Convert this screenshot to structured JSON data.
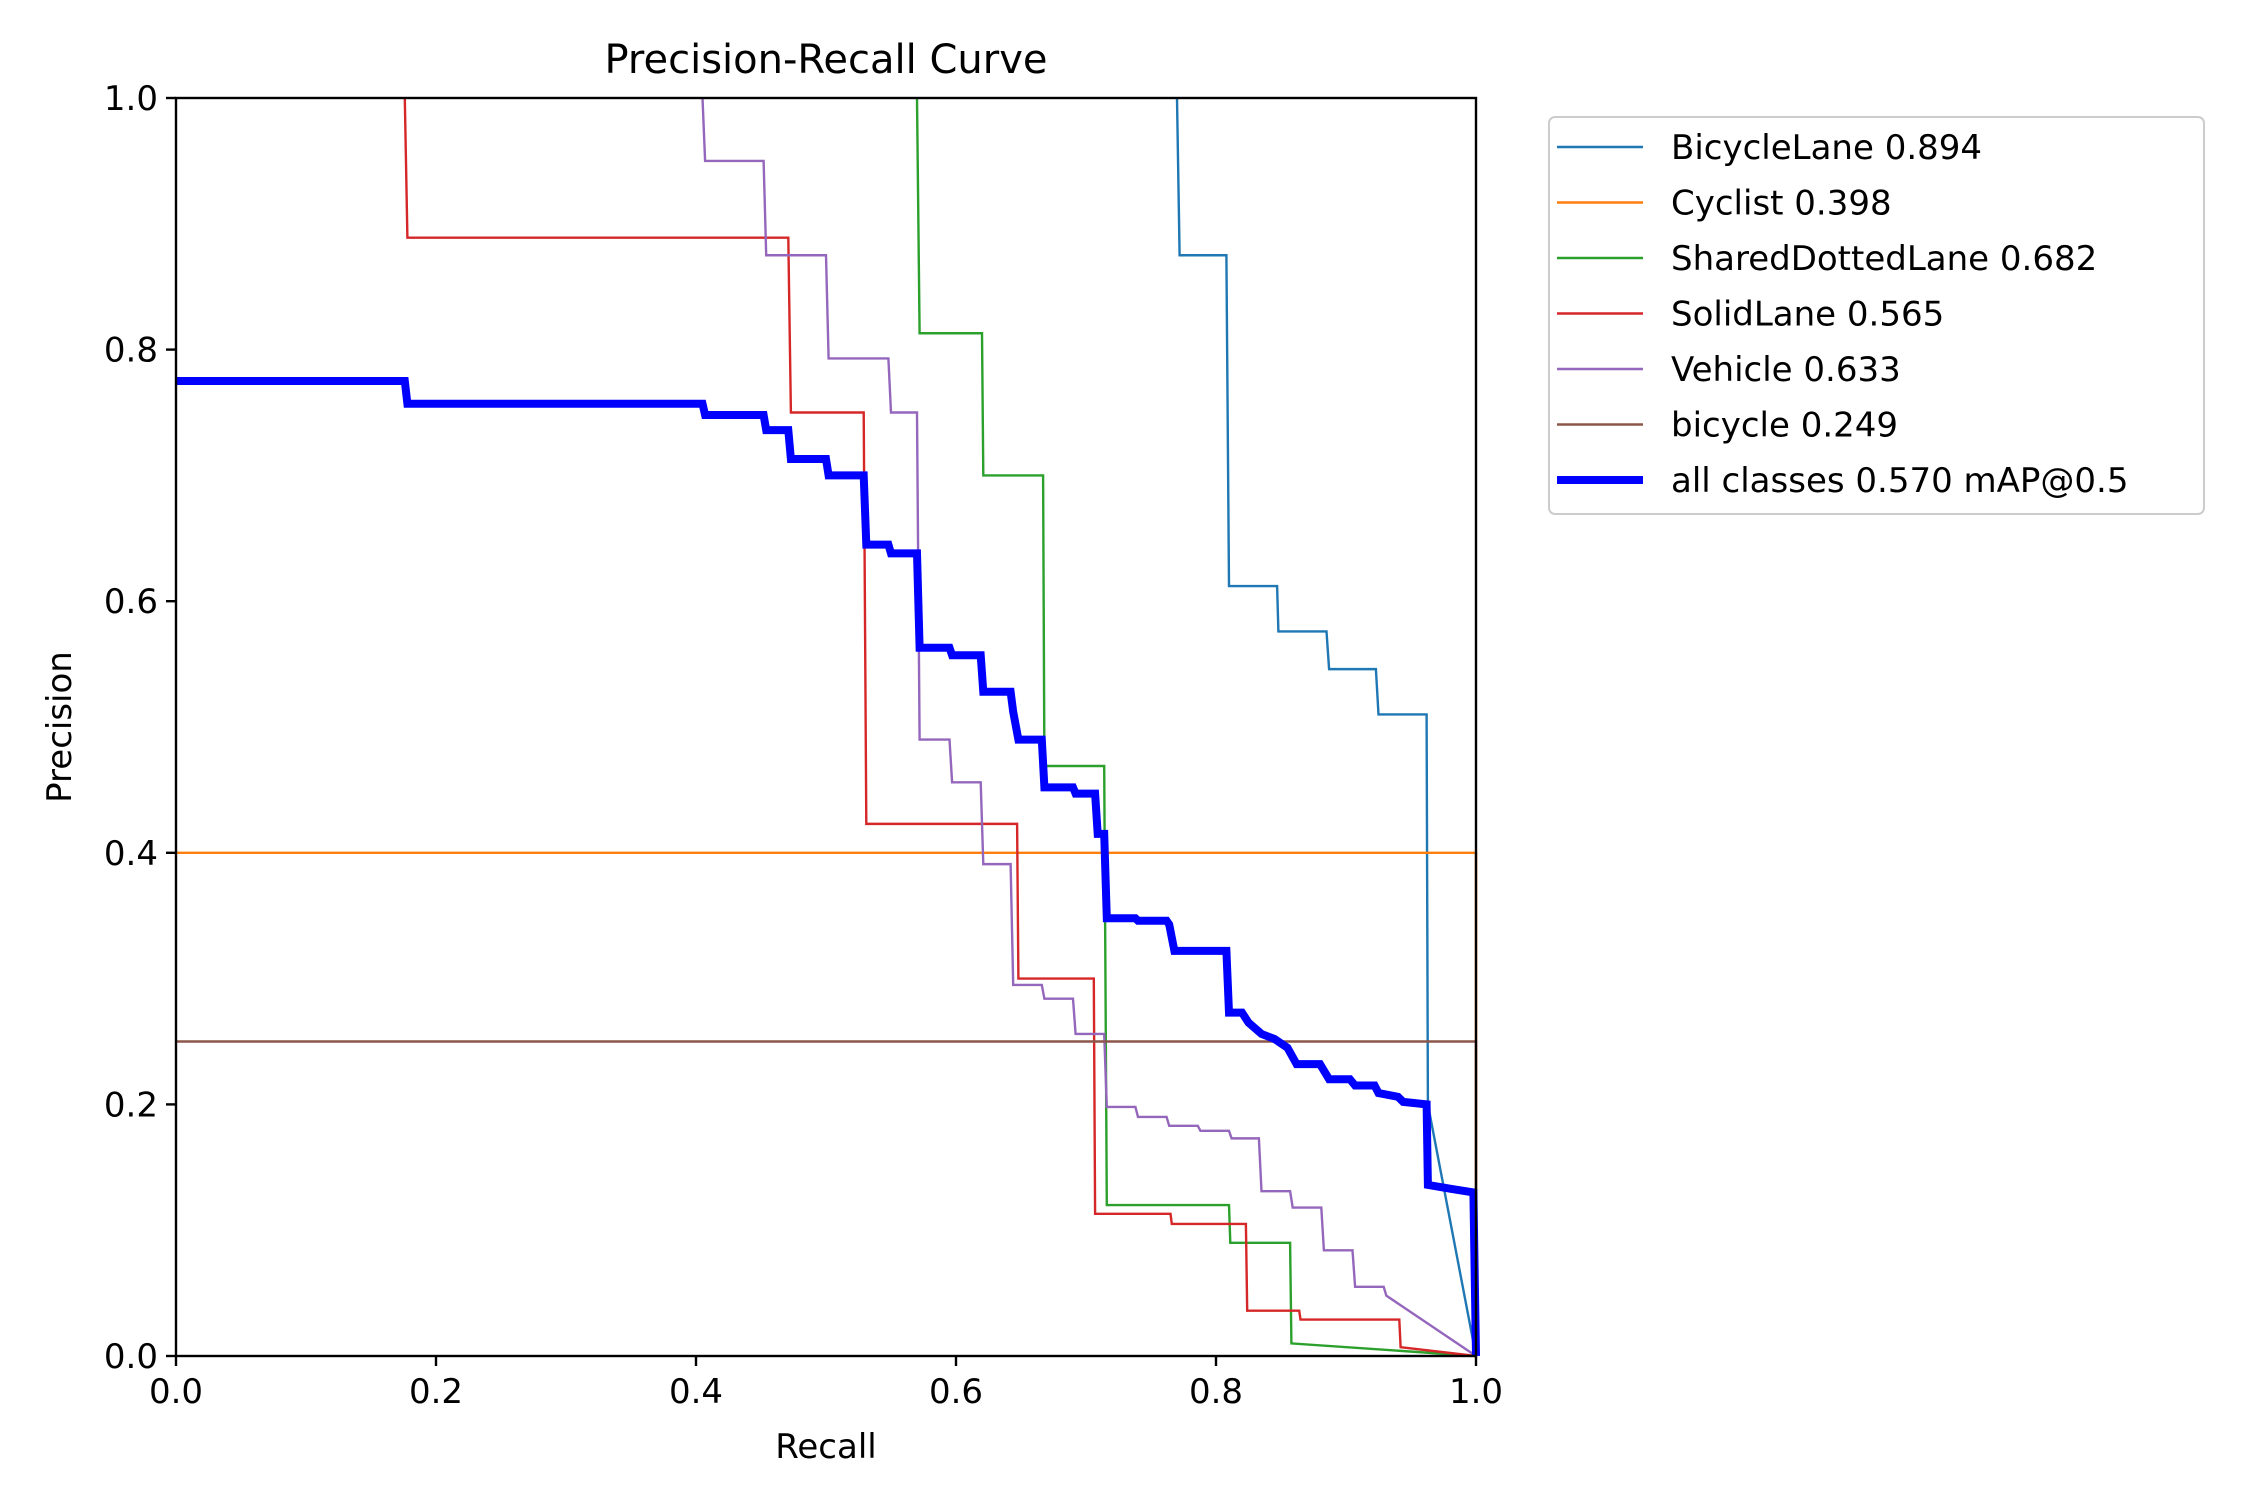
{
  "chart_data": {
    "type": "line",
    "title": "Precision-Recall Curve",
    "xlabel": "Recall",
    "ylabel": "Precision",
    "xlim": [
      0,
      1
    ],
    "ylim": [
      0,
      1
    ],
    "x_ticks": [
      "0.0",
      "0.2",
      "0.4",
      "0.6",
      "0.8",
      "1.0"
    ],
    "y_ticks": [
      "0.0",
      "0.2",
      "0.4",
      "0.6",
      "0.8",
      "1.0"
    ],
    "grid": false,
    "legend_position": "outside-top-right",
    "series": [
      {
        "name": "BicycleLane 0.894",
        "color": "#1f77b4",
        "width": "thin",
        "points": [
          [
            0.77,
            1.0
          ],
          [
            0.772,
            0.875
          ],
          [
            0.808,
            0.875
          ],
          [
            0.81,
            0.612
          ],
          [
            0.847,
            0.612
          ],
          [
            0.848,
            0.576
          ],
          [
            0.885,
            0.576
          ],
          [
            0.887,
            0.546
          ],
          [
            0.923,
            0.546
          ],
          [
            0.925,
            0.51
          ],
          [
            0.962,
            0.51
          ],
          [
            0.963,
            0.2
          ],
          [
            1.0,
            0.0
          ]
        ]
      },
      {
        "name": "Cyclist 0.398",
        "color": "#ff7f0e",
        "width": "thin",
        "points": [
          [
            0.0,
            0.4
          ],
          [
            1.0,
            0.4
          ],
          [
            1.0,
            0.0
          ]
        ]
      },
      {
        "name": "SharedDottedLane 0.682",
        "color": "#2ca02c",
        "width": "thin",
        "points": [
          [
            0.57,
            1.0
          ],
          [
            0.572,
            0.813
          ],
          [
            0.62,
            0.813
          ],
          [
            0.621,
            0.7
          ],
          [
            0.667,
            0.7
          ],
          [
            0.668,
            0.469
          ],
          [
            0.714,
            0.469
          ],
          [
            0.716,
            0.12
          ],
          [
            0.81,
            0.12
          ],
          [
            0.811,
            0.09
          ],
          [
            0.857,
            0.09
          ],
          [
            0.858,
            0.01
          ],
          [
            1.0,
            0.0
          ]
        ]
      },
      {
        "name": "SolidLane 0.565",
        "color": "#d62728",
        "width": "thin",
        "points": [
          [
            0.176,
            1.0
          ],
          [
            0.178,
            0.889
          ],
          [
            0.471,
            0.889
          ],
          [
            0.473,
            0.75
          ],
          [
            0.529,
            0.75
          ],
          [
            0.531,
            0.423
          ],
          [
            0.647,
            0.423
          ],
          [
            0.648,
            0.3
          ],
          [
            0.706,
            0.3
          ],
          [
            0.707,
            0.113
          ],
          [
            0.765,
            0.113
          ],
          [
            0.766,
            0.105
          ],
          [
            0.823,
            0.105
          ],
          [
            0.824,
            0.036
          ],
          [
            0.864,
            0.036
          ],
          [
            0.865,
            0.029
          ],
          [
            0.941,
            0.029
          ],
          [
            0.942,
            0.007
          ],
          [
            1.0,
            0.0
          ]
        ]
      },
      {
        "name": "Vehicle 0.633",
        "color": "#9467bd",
        "width": "thin",
        "points": [
          [
            0.405,
            1.0
          ],
          [
            0.407,
            0.95
          ],
          [
            0.452,
            0.95
          ],
          [
            0.454,
            0.875
          ],
          [
            0.5,
            0.875
          ],
          [
            0.502,
            0.793
          ],
          [
            0.548,
            0.793
          ],
          [
            0.55,
            0.75
          ],
          [
            0.57,
            0.75
          ],
          [
            0.572,
            0.49
          ],
          [
            0.595,
            0.49
          ],
          [
            0.597,
            0.456
          ],
          [
            0.619,
            0.456
          ],
          [
            0.621,
            0.391
          ],
          [
            0.642,
            0.391
          ],
          [
            0.644,
            0.295
          ],
          [
            0.666,
            0.295
          ],
          [
            0.668,
            0.284
          ],
          [
            0.69,
            0.284
          ],
          [
            0.692,
            0.256
          ],
          [
            0.714,
            0.256
          ],
          [
            0.716,
            0.198
          ],
          [
            0.738,
            0.198
          ],
          [
            0.74,
            0.19
          ],
          [
            0.762,
            0.19
          ],
          [
            0.764,
            0.183
          ],
          [
            0.786,
            0.183
          ],
          [
            0.788,
            0.179
          ],
          [
            0.81,
            0.179
          ],
          [
            0.812,
            0.173
          ],
          [
            0.833,
            0.173
          ],
          [
            0.835,
            0.131
          ],
          [
            0.857,
            0.131
          ],
          [
            0.859,
            0.118
          ],
          [
            0.881,
            0.118
          ],
          [
            0.883,
            0.084
          ],
          [
            0.905,
            0.084
          ],
          [
            0.907,
            0.055
          ],
          [
            0.929,
            0.055
          ],
          [
            0.931,
            0.048
          ],
          [
            1.0,
            0.0
          ]
        ]
      },
      {
        "name": "bicycle 0.249",
        "color": "#8c564b",
        "width": "thin",
        "points": [
          [
            0.0,
            0.25
          ],
          [
            1.0,
            0.25
          ],
          [
            1.0,
            0.0
          ]
        ]
      },
      {
        "name": "all classes 0.570 mAP@0.5",
        "color": "#0000ff",
        "width": "thick",
        "points": [
          [
            0.0,
            0.775
          ],
          [
            0.176,
            0.775
          ],
          [
            0.178,
            0.757
          ],
          [
            0.405,
            0.757
          ],
          [
            0.407,
            0.748
          ],
          [
            0.452,
            0.748
          ],
          [
            0.454,
            0.736
          ],
          [
            0.471,
            0.736
          ],
          [
            0.473,
            0.713
          ],
          [
            0.5,
            0.713
          ],
          [
            0.502,
            0.7
          ],
          [
            0.529,
            0.7
          ],
          [
            0.531,
            0.645
          ],
          [
            0.548,
            0.645
          ],
          [
            0.55,
            0.638
          ],
          [
            0.57,
            0.638
          ],
          [
            0.572,
            0.563
          ],
          [
            0.595,
            0.563
          ],
          [
            0.597,
            0.557
          ],
          [
            0.619,
            0.557
          ],
          [
            0.621,
            0.528
          ],
          [
            0.642,
            0.528
          ],
          [
            0.644,
            0.512
          ],
          [
            0.648,
            0.49
          ],
          [
            0.666,
            0.49
          ],
          [
            0.668,
            0.452
          ],
          [
            0.69,
            0.452
          ],
          [
            0.692,
            0.447
          ],
          [
            0.707,
            0.447
          ],
          [
            0.709,
            0.415
          ],
          [
            0.714,
            0.415
          ],
          [
            0.716,
            0.348
          ],
          [
            0.738,
            0.348
          ],
          [
            0.74,
            0.346
          ],
          [
            0.762,
            0.346
          ],
          [
            0.764,
            0.343
          ],
          [
            0.768,
            0.322
          ],
          [
            0.808,
            0.322
          ],
          [
            0.81,
            0.273
          ],
          [
            0.82,
            0.273
          ],
          [
            0.825,
            0.265
          ],
          [
            0.835,
            0.256
          ],
          [
            0.845,
            0.252
          ],
          [
            0.855,
            0.245
          ],
          [
            0.862,
            0.232
          ],
          [
            0.88,
            0.232
          ],
          [
            0.887,
            0.22
          ],
          [
            0.903,
            0.22
          ],
          [
            0.907,
            0.215
          ],
          [
            0.922,
            0.215
          ],
          [
            0.925,
            0.209
          ],
          [
            0.94,
            0.206
          ],
          [
            0.944,
            0.202
          ],
          [
            0.962,
            0.2
          ],
          [
            0.963,
            0.136
          ],
          [
            0.98,
            0.133
          ],
          [
            0.998,
            0.13
          ],
          [
            1.0,
            0.0
          ]
        ]
      }
    ]
  }
}
